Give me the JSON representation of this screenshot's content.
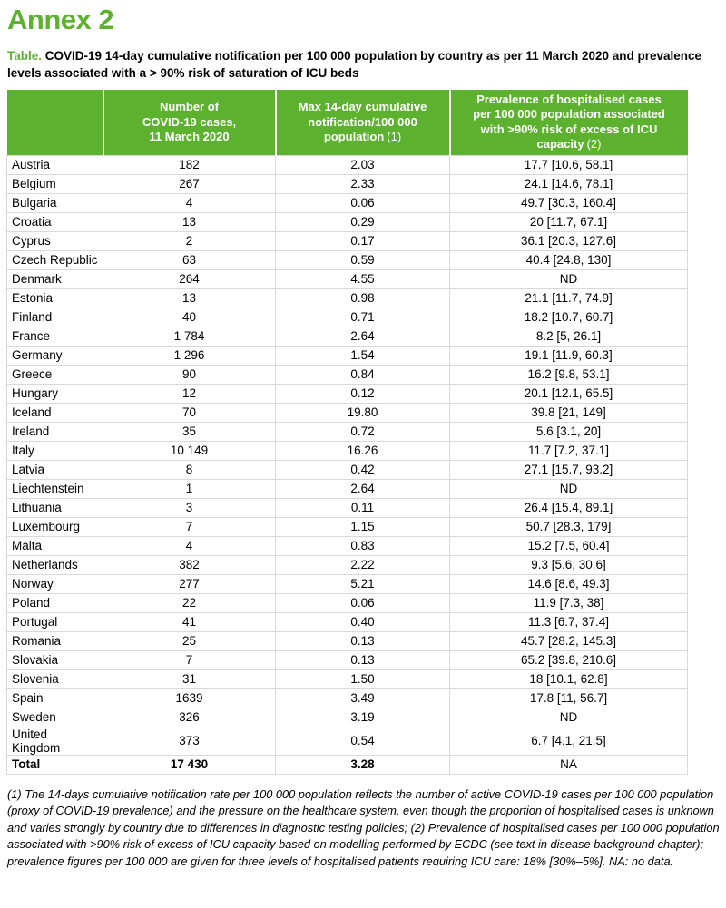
{
  "colors": {
    "accent_green": "#5CB22E",
    "header_text": "#FFFFFF",
    "body_text": "#000000",
    "grid_line": "#D9D9D9"
  },
  "page_title": "Annex 2",
  "caption": {
    "label": "Table.",
    "text": "COVID-19 14-day cumulative notification per 100 000 population by country as per 11 March 2020 and prevalence levels associated with a > 90% risk of saturation of ICU beds"
  },
  "table": {
    "header": {
      "country": "",
      "cases": "Number of\nCOVID-19 cases,\n11 March 2020",
      "rate_main": "Max 14-day cumulative\nnotification/100 000\npopulation",
      "rate_note": "(1)",
      "prevalence_main": "Prevalence of hospitalised cases\nper 100 000 population associated\nwith >90% risk of excess of ICU\ncapacity",
      "prevalence_note": "(2)"
    },
    "rows": [
      {
        "country": "Austria",
        "cases": "182",
        "rate": "2.03",
        "prevalence": "17.7 [10.6, 58.1]"
      },
      {
        "country": "Belgium",
        "cases": "267",
        "rate": "2.33",
        "prevalence": "24.1 [14.6, 78.1]"
      },
      {
        "country": "Bulgaria",
        "cases": "4",
        "rate": "0.06",
        "prevalence": "49.7 [30.3, 160.4]"
      },
      {
        "country": "Croatia",
        "cases": "13",
        "rate": "0.29",
        "prevalence": "20 [11.7, 67.1]"
      },
      {
        "country": "Cyprus",
        "cases": "2",
        "rate": "0.17",
        "prevalence": "36.1 [20.3, 127.6]"
      },
      {
        "country": "Czech Republic",
        "cases": "63",
        "rate": "0.59",
        "prevalence": "40.4 [24.8, 130]"
      },
      {
        "country": "Denmark",
        "cases": "264",
        "rate": "4.55",
        "prevalence": "ND"
      },
      {
        "country": "Estonia",
        "cases": "13",
        "rate": "0.98",
        "prevalence": "21.1 [11.7, 74.9]"
      },
      {
        "country": "Finland",
        "cases": "40",
        "rate": "0.71",
        "prevalence": "18.2 [10.7, 60.7]"
      },
      {
        "country": "France",
        "cases": "1 784",
        "rate": "2.64",
        "prevalence": "8.2 [5, 26.1]"
      },
      {
        "country": "Germany",
        "cases": "1 296",
        "rate": "1.54",
        "prevalence": "19.1 [11.9, 60.3]"
      },
      {
        "country": "Greece",
        "cases": "90",
        "rate": "0.84",
        "prevalence": "16.2 [9.8, 53.1]"
      },
      {
        "country": "Hungary",
        "cases": "12",
        "rate": "0.12",
        "prevalence": "20.1 [12.1, 65.5]"
      },
      {
        "country": "Iceland",
        "cases": "70",
        "rate": "19.80",
        "prevalence": "39.8 [21, 149]"
      },
      {
        "country": "Ireland",
        "cases": "35",
        "rate": "0.72",
        "prevalence": "5.6 [3.1, 20]"
      },
      {
        "country": "Italy",
        "cases": "10 149",
        "rate": "16.26",
        "prevalence": "11.7 [7.2, 37.1]"
      },
      {
        "country": "Latvia",
        "cases": "8",
        "rate": "0.42",
        "prevalence": "27.1 [15.7, 93.2]"
      },
      {
        "country": "Liechtenstein",
        "cases": "1",
        "rate": "2.64",
        "prevalence": "ND"
      },
      {
        "country": "Lithuania",
        "cases": "3",
        "rate": "0.11",
        "prevalence": "26.4 [15.4, 89.1]"
      },
      {
        "country": "Luxembourg",
        "cases": "7",
        "rate": "1.15",
        "prevalence": "50.7 [28.3, 179]"
      },
      {
        "country": "Malta",
        "cases": "4",
        "rate": "0.83",
        "prevalence": "15.2 [7.5, 60.4]"
      },
      {
        "country": "Netherlands",
        "cases": "382",
        "rate": "2.22",
        "prevalence": "9.3 [5.6, 30.6]"
      },
      {
        "country": "Norway",
        "cases": "277",
        "rate": "5.21",
        "prevalence": "14.6 [8.6, 49.3]"
      },
      {
        "country": "Poland",
        "cases": "22",
        "rate": "0.06",
        "prevalence": "11.9 [7.3, 38]"
      },
      {
        "country": "Portugal",
        "cases": "41",
        "rate": "0.40",
        "prevalence": "11.3 [6.7, 37.4]"
      },
      {
        "country": "Romania",
        "cases": "25",
        "rate": "0.13",
        "prevalence": "45.7 [28.2, 145.3]"
      },
      {
        "country": "Slovakia",
        "cases": "7",
        "rate": "0.13",
        "prevalence": "65.2 [39.8, 210.6]"
      },
      {
        "country": "Slovenia",
        "cases": "31",
        "rate": "1.50",
        "prevalence": "18 [10.1, 62.8]"
      },
      {
        "country": "Spain",
        "cases": "1639",
        "rate": "3.49",
        "prevalence": "17.8 [11, 56.7]"
      },
      {
        "country": "Sweden",
        "cases": "326",
        "rate": "3.19",
        "prevalence": "ND"
      },
      {
        "country": "United Kingdom",
        "cases": "373",
        "rate": "0.54",
        "prevalence": "6.7 [4.1, 21.5]"
      },
      {
        "country": "Total",
        "cases": "17 430",
        "rate": "3.28",
        "prevalence": "NA",
        "is_total": true
      }
    ]
  },
  "footnote": "(1) The 14-days cumulative notification rate per 100 000 population reflects the number of active COVID-19 cases per 100 000 population (proxy of COVID-19 prevalence) and the pressure on the healthcare system, even though the proportion of hospitalised cases is unknown and varies strongly by country due to differences in diagnostic testing policies; (2) Prevalence of hospitalised cases per 100 000 population associated with >90% risk of excess of ICU capacity based on modelling performed by ECDC (see text in disease background chapter); prevalence figures per 100 000 are given for three levels of hospitalised patients requiring ICU care: 18% [30%–5%]. NA: no data."
}
